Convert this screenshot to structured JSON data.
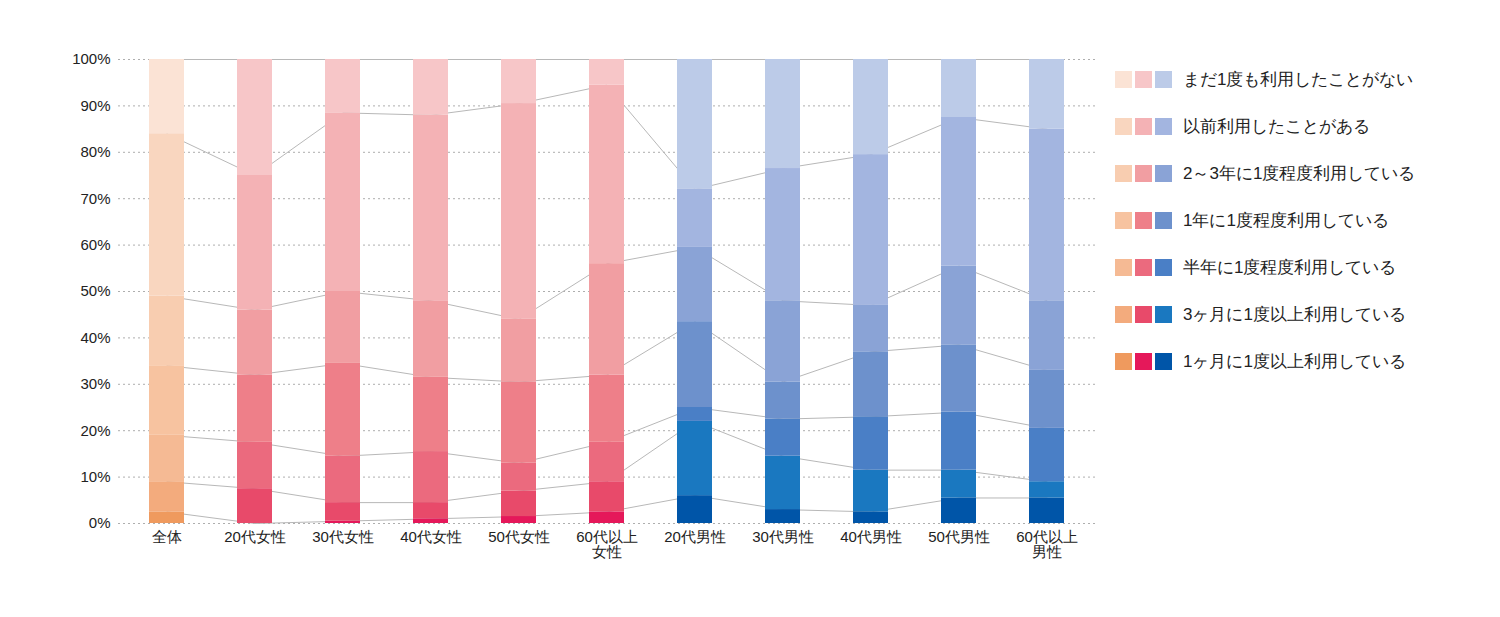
{
  "chart_data": {
    "type": "bar",
    "stacked": true,
    "grid": true,
    "legend": "right",
    "categories": [
      "全体",
      "20代女性",
      "30代女性",
      "40代女性",
      "50代女性",
      "60代以上\n女性",
      "20代男性",
      "30代男性",
      "40代男性",
      "50代男性",
      "60代以上\n男性"
    ],
    "ylim": [
      0,
      100
    ],
    "yticks": [
      {
        "value": 0,
        "label": "0%"
      },
      {
        "value": 10,
        "label": "10%"
      },
      {
        "value": 20,
        "label": "20%"
      },
      {
        "value": 30,
        "label": "30%"
      },
      {
        "value": 40,
        "label": "40%"
      },
      {
        "value": 50,
        "label": "50%"
      },
      {
        "value": 60,
        "label": "60%"
      },
      {
        "value": 70,
        "label": "70%"
      },
      {
        "value": 80,
        "label": "80%"
      },
      {
        "value": 90,
        "label": "90%"
      },
      {
        "value": 100,
        "label": "100%"
      }
    ],
    "series": [
      {
        "name": "まだ1度も利用したことがない",
        "values": [
          16,
          25,
          11.5,
          12,
          9.5,
          5.5,
          28,
          23.5,
          20.5,
          12.5,
          15
        ],
        "colors": [
          "#fbe3d5",
          "#f7c6c8",
          "#f7c6c8",
          "#f7c6c8",
          "#f7c6c8",
          "#f7c6c8",
          "#bccbe8",
          "#bccbe8",
          "#bccbe8",
          "#bccbe8",
          "#bccbe8"
        ]
      },
      {
        "name": "以前利用したことがある",
        "values": [
          35,
          29,
          38.5,
          40,
          46.5,
          38.5,
          12.5,
          28.5,
          32.5,
          32,
          37
        ],
        "colors": [
          "#f9d6bf",
          "#f4b2b5",
          "#f4b2b5",
          "#f4b2b5",
          "#f4b2b5",
          "#f4b2b5",
          "#a3b5e0",
          "#a3b5e0",
          "#a3b5e0",
          "#a3b5e0",
          "#a3b5e0"
        ]
      },
      {
        "name": "2～3年に1度程度利用している",
        "values": [
          15,
          14,
          15.5,
          16.5,
          13.5,
          24,
          16,
          17.5,
          10,
          17,
          15
        ],
        "colors": [
          "#f8cdb0",
          "#f19ea2",
          "#f19ea2",
          "#f19ea2",
          "#f19ea2",
          "#f19ea2",
          "#8aa3d6",
          "#8aa3d6",
          "#8aa3d6",
          "#8aa3d6",
          "#8aa3d6"
        ]
      },
      {
        "name": "1年に1度程度利用している",
        "values": [
          15,
          14.5,
          20,
          16,
          17.5,
          14.5,
          18.5,
          8,
          14,
          14.5,
          12.5
        ],
        "colors": [
          "#f7c3a0",
          "#ee7f89",
          "#ee7f89",
          "#ee7f89",
          "#ee7f89",
          "#ee7f89",
          "#6d91cc",
          "#6d91cc",
          "#6d91cc",
          "#6d91cc",
          "#6d91cc"
        ]
      },
      {
        "name": "半年に1度程度利用している",
        "values": [
          10,
          10,
          10,
          11,
          6,
          8.5,
          3,
          8,
          11.5,
          12.5,
          11.5
        ],
        "colors": [
          "#f5ba94",
          "#eb6a7e",
          "#eb6a7e",
          "#eb6a7e",
          "#eb6a7e",
          "#eb6a7e",
          "#4a7fc6",
          "#4a7fc6",
          "#4a7fc6",
          "#4a7fc6",
          "#4a7fc6"
        ]
      },
      {
        "name": "3ヶ月に1度以上利用している",
        "values": [
          6.5,
          7.5,
          4,
          3.5,
          5.5,
          6.5,
          16,
          11.5,
          9,
          6,
          3.5
        ],
        "colors": [
          "#f3ab7d",
          "#e84a6a",
          "#e84a6a",
          "#e84a6a",
          "#e84a6a",
          "#e84a6a",
          "#1a78c0",
          "#1a78c0",
          "#1a78c0",
          "#1a78c0",
          "#1a78c0"
        ]
      },
      {
        "name": "1ヶ月に1度以上利用している",
        "values": [
          2.5,
          0,
          0.5,
          1,
          1.5,
          2.5,
          6,
          3,
          2.5,
          5.5,
          5.5
        ],
        "colors": [
          "#ef9a5e",
          "#e5185a",
          "#e5185a",
          "#e5185a",
          "#e5185a",
          "#e5185a",
          "#0055a8",
          "#0055a8",
          "#0055a8",
          "#0055a8",
          "#0055a8"
        ]
      }
    ]
  }
}
